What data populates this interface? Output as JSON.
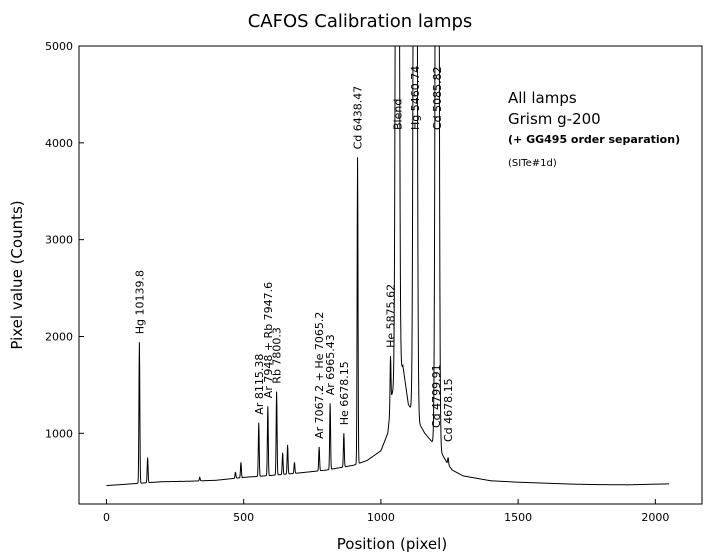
{
  "chart_data": {
    "type": "line",
    "title": "CAFOS Calibration lamps",
    "xlabel": "Position (pixel)",
    "ylabel": "Pixel value (Counts)",
    "xlim": [
      -100,
      2170
    ],
    "ylim": [
      270,
      5000
    ],
    "xticks": [
      0,
      500,
      1000,
      1500,
      2000
    ],
    "yticks": [
      1000,
      2000,
      3000,
      4000,
      5000
    ],
    "grid": false,
    "annotations": [
      "All lamps",
      "Grism g-200",
      "(+ GG495 order separation)",
      "(SITe#1d)"
    ],
    "continuum": [
      [
        0,
        460
      ],
      [
        100,
        480
      ],
      [
        200,
        500
      ],
      [
        300,
        505
      ],
      [
        400,
        515
      ],
      [
        500,
        545
      ],
      [
        600,
        565
      ],
      [
        700,
        590
      ],
      [
        800,
        620
      ],
      [
        900,
        670
      ],
      [
        950,
        720
      ],
      [
        1000,
        820
      ],
      [
        1025,
        1000
      ],
      [
        1040,
        1400
      ],
      [
        1080,
        1700
      ],
      [
        1100,
        1300
      ],
      [
        1140,
        1100
      ],
      [
        1160,
        1000
      ],
      [
        1190,
        900
      ],
      [
        1220,
        800
      ],
      [
        1240,
        700
      ],
      [
        1260,
        620
      ],
      [
        1300,
        560
      ],
      [
        1400,
        510
      ],
      [
        1500,
        495
      ],
      [
        1600,
        485
      ],
      [
        1700,
        475
      ],
      [
        1800,
        470
      ],
      [
        1900,
        468
      ],
      [
        2000,
        475
      ],
      [
        2050,
        478
      ]
    ],
    "lines": [
      {
        "x": 120,
        "peak": 1940,
        "label": "Hg 10139.8"
      },
      {
        "x": 150,
        "peak": 750,
        "label": ""
      },
      {
        "x": 340,
        "peak": 545,
        "label": ""
      },
      {
        "x": 470,
        "peak": 600,
        "label": ""
      },
      {
        "x": 490,
        "peak": 700,
        "label": ""
      },
      {
        "x": 555,
        "peak": 1110,
        "label": "Ar 8115.38"
      },
      {
        "x": 588,
        "peak": 1280,
        "label": "Ar 7948 + Rb 7947.6"
      },
      {
        "x": 620,
        "peak": 1430,
        "label": "Rb 7800.3"
      },
      {
        "x": 642,
        "peak": 800,
        "label": ""
      },
      {
        "x": 660,
        "peak": 880,
        "label": ""
      },
      {
        "x": 685,
        "peak": 700,
        "label": ""
      },
      {
        "x": 775,
        "peak": 860,
        "label": "Ar 7067.2 + He 7065.2"
      },
      {
        "x": 815,
        "peak": 1310,
        "label": "Ar 6965.43"
      },
      {
        "x": 865,
        "peak": 1000,
        "label": "He 6678.15"
      },
      {
        "x": 915,
        "peak": 3850,
        "label": "Cd 6438.47"
      },
      {
        "x": 1035,
        "peak": 1800,
        "label": "He 5875.62"
      },
      {
        "x": 1060,
        "peak": 5000,
        "label": "Blend"
      },
      {
        "x": 1125,
        "peak": 5000,
        "label": "Hg 5460.74"
      },
      {
        "x": 1205,
        "peak": 5000,
        "label": "Cd 5085.82"
      },
      {
        "x": 1200,
        "peak": 780,
        "label": "Cd 4799.91"
      },
      {
        "x": 1245,
        "peak": 750,
        "label": "Cd 4678.15"
      }
    ]
  }
}
